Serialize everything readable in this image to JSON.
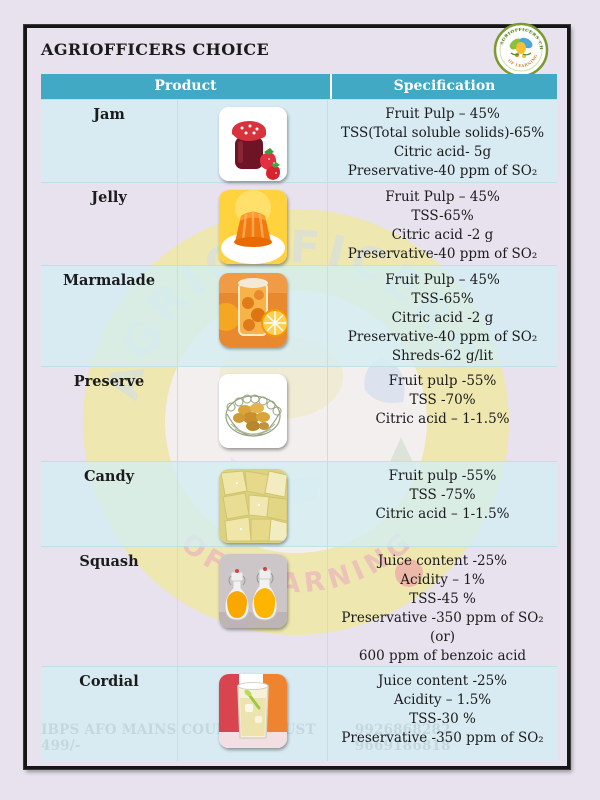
{
  "page": {
    "title": "AGRIOFFICERS CHOICE",
    "footer_left": "IBPS AFO MAINS COURSE IN JUST 499/-",
    "footer_right": "9926868282, 9669186818"
  },
  "watermark": {
    "top_text": "AGRIOFFICERS",
    "bottom_text": "OF LEARNING"
  },
  "colors": {
    "header_teal": "#42a9c4",
    "row_blue": "#dceef2",
    "row_lavender": "#e7e2ee",
    "watermark_yellow": "#f5ed68",
    "watermark_salmon": "#f0a183",
    "frame_black": "#161616"
  },
  "table": {
    "headers": [
      "Product",
      "Specification"
    ],
    "rows": [
      {
        "name": "Jam",
        "image": "jam-jar-with-strawberries",
        "spec": [
          "Fruit Pulp – 45%",
          "TSS(Total soluble solids)-65%",
          "Citric acid- 5g",
          "Preservative-40 ppm of SO₂"
        ]
      },
      {
        "name": "Jelly",
        "image": "orange-jelly",
        "spec": [
          "Fruit Pulp – 45%",
          "TSS-65%",
          "Citric acid -2 g",
          "Preservative-40 ppm of SO₂"
        ]
      },
      {
        "name": "Marmalade",
        "image": "marmalade-jar-with-oranges",
        "spec": [
          "Fruit Pulp – 45%",
          "TSS-65%",
          "Citric acid -2 g",
          "Preservative-40 ppm of SO₂",
          "Shreds-62 g/lit"
        ]
      },
      {
        "name": "Preserve",
        "image": "preserved-fruit-bowl",
        "spec": [
          "Fruit pulp -55%",
          "TSS -70%",
          "Citric acid – 1-1.5%"
        ]
      },
      {
        "name": "Candy",
        "image": "candied-fruit-cubes",
        "spec": [
          "Fruit pulp -55%",
          "TSS -75%",
          "Citric acid – 1-1.5%"
        ]
      },
      {
        "name": "Squash",
        "image": "orange-squash-bottles",
        "spec": [
          "Juice content -25%",
          "Acidity – 1%",
          "TSS-45 %",
          "Preservative -350 ppm of SO₂ (or)",
          "600 ppm of benzoic acid"
        ]
      },
      {
        "name": "Cordial",
        "image": "cordial-glass",
        "spec": [
          "Juice content -25%",
          "Acidity – 1.5%",
          "TSS-30 %",
          "Preservative -350 ppm of SO₂"
        ]
      }
    ]
  }
}
